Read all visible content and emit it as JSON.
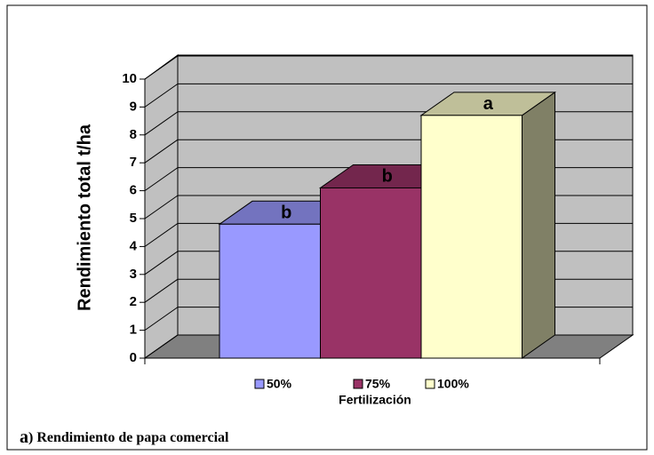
{
  "chart_data": {
    "type": "bar",
    "y_axis_label": "Rendimiento total t/ha",
    "x_axis_label": "Fertilización",
    "series": [
      {
        "name": "50%",
        "color": "#9999ff",
        "values": [
          4.8
        ],
        "annotation": "b"
      },
      {
        "name": "75%",
        "color": "#993366",
        "values": [
          6.1
        ],
        "annotation": "b"
      },
      {
        "name": "100%",
        "color": "#ffffcc",
        "values": [
          8.7
        ],
        "annotation": "a"
      }
    ],
    "ylim": [
      0,
      10
    ],
    "yticks": [
      0,
      1,
      2,
      3,
      4,
      5,
      6,
      7,
      8,
      9,
      10
    ],
    "grid": true,
    "caption_letter": "a",
    "caption_text": ") Rendimiento de papa comercial"
  }
}
